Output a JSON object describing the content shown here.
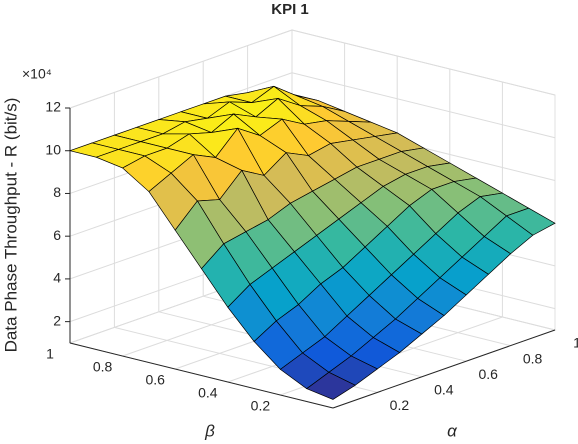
{
  "chart_data": {
    "type": "surface",
    "title": "KPI 1",
    "xlabel": "α",
    "ylabel": "β",
    "zlabel": "Data Phase Throughput - R (bit/s)",
    "exponent_label": "×10⁴",
    "x": [
      0,
      0.1,
      0.2,
      0.3,
      0.4,
      0.5,
      0.6,
      0.7,
      0.8,
      0.9,
      1
    ],
    "y": [
      0,
      0.1,
      0.2,
      0.3,
      0.4,
      0.5,
      0.6,
      0.7,
      0.8,
      0.9,
      1
    ],
    "z": [
      [
        1.4,
        1.7,
        2.1,
        2.5,
        3,
        3.5,
        4.1,
        4.7,
        5.3,
        5.8,
        6
      ],
      [
        1.6,
        2,
        2.4,
        2.9,
        3.4,
        4,
        4.6,
        5.2,
        5.8,
        6.4,
        6.4
      ],
      [
        2.2,
        2.6,
        3,
        3.6,
        4.2,
        4.8,
        5.4,
        6,
        6.6,
        7,
        6.8
      ],
      [
        3.2,
        3.8,
        4.2,
        4.8,
        5.2,
        5.8,
        6.4,
        7,
        7.4,
        7.4,
        7.2
      ],
      [
        4.5,
        5.2,
        5.6,
        6,
        6.4,
        6.8,
        7.2,
        7.6,
        7.8,
        7.8,
        7.6
      ],
      [
        6,
        6.8,
        7,
        7.2,
        7.6,
        7.8,
        8,
        8.2,
        8.2,
        8.2,
        8
      ],
      [
        7.5,
        8.5,
        8.2,
        9.2,
        8.6,
        9.3,
        8.8,
        9,
        8.8,
        8.6,
        8.4
      ],
      [
        9,
        9.5,
        10,
        9.5,
        10.5,
        9.8,
        10.2,
        9.6,
        9.4,
        9,
        8.6
      ],
      [
        9.8,
        10,
        10,
        10.3,
        10,
        10.5,
        10,
        10.5,
        9.8,
        9.4,
        8.8
      ],
      [
        10,
        10,
        10,
        10,
        10.2,
        10,
        10.4,
        10,
        10.4,
        9.6,
        9
      ],
      [
        10,
        10,
        10,
        10,
        10,
        10,
        10,
        10,
        9.8,
        9.5,
        9
      ]
    ],
    "xlim": [
      0,
      1
    ],
    "ylim": [
      0,
      1
    ],
    "zlim": [
      1,
      12
    ],
    "xticks": [
      0.2,
      0.4,
      0.6,
      0.8,
      1
    ],
    "yticks": [
      0.2,
      0.4,
      0.6,
      0.8,
      1
    ],
    "zticks": [
      2,
      4,
      6,
      8,
      10,
      12
    ],
    "colormap": "parula",
    "grid": true
  }
}
